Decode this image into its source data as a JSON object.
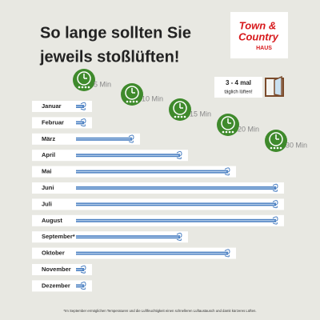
{
  "chart_data": {
    "type": "bar",
    "orientation": "horizontal",
    "title_lines": [
      "So lange sollten Sie",
      "jeweils stoßlüften!"
    ],
    "categories": [
      "Januar",
      "Februar",
      "März",
      "April",
      "Mai",
      "Juni",
      "Juli",
      "August",
      "September*",
      "Oktober",
      "November",
      "Dezember"
    ],
    "values": [
      5,
      5,
      10,
      15,
      20,
      30,
      30,
      30,
      15,
      20,
      5,
      5
    ],
    "color": "#4a7fc1",
    "xticks": [
      {
        "value": 5,
        "label": "5 Min"
      },
      {
        "value": 10,
        "label": "10 Min"
      },
      {
        "value": 15,
        "label": "15 Min"
      },
      {
        "value": 20,
        "label": "20 Min"
      },
      {
        "value": 30,
        "label": "30 Min"
      }
    ],
    "tick_color": "#3f8a2c",
    "annotation_lines": [
      "3 - 4 mal",
      "täglich lüften!"
    ],
    "footnote": "*Im September ermöglichen Temperaturen und die Luftfeuchtigkeit einen schnelleren Luftaustausch und damit kürzeres Lüften."
  },
  "logo": {
    "lines": [
      "Town &",
      "Country",
      "HAUS"
    ]
  }
}
